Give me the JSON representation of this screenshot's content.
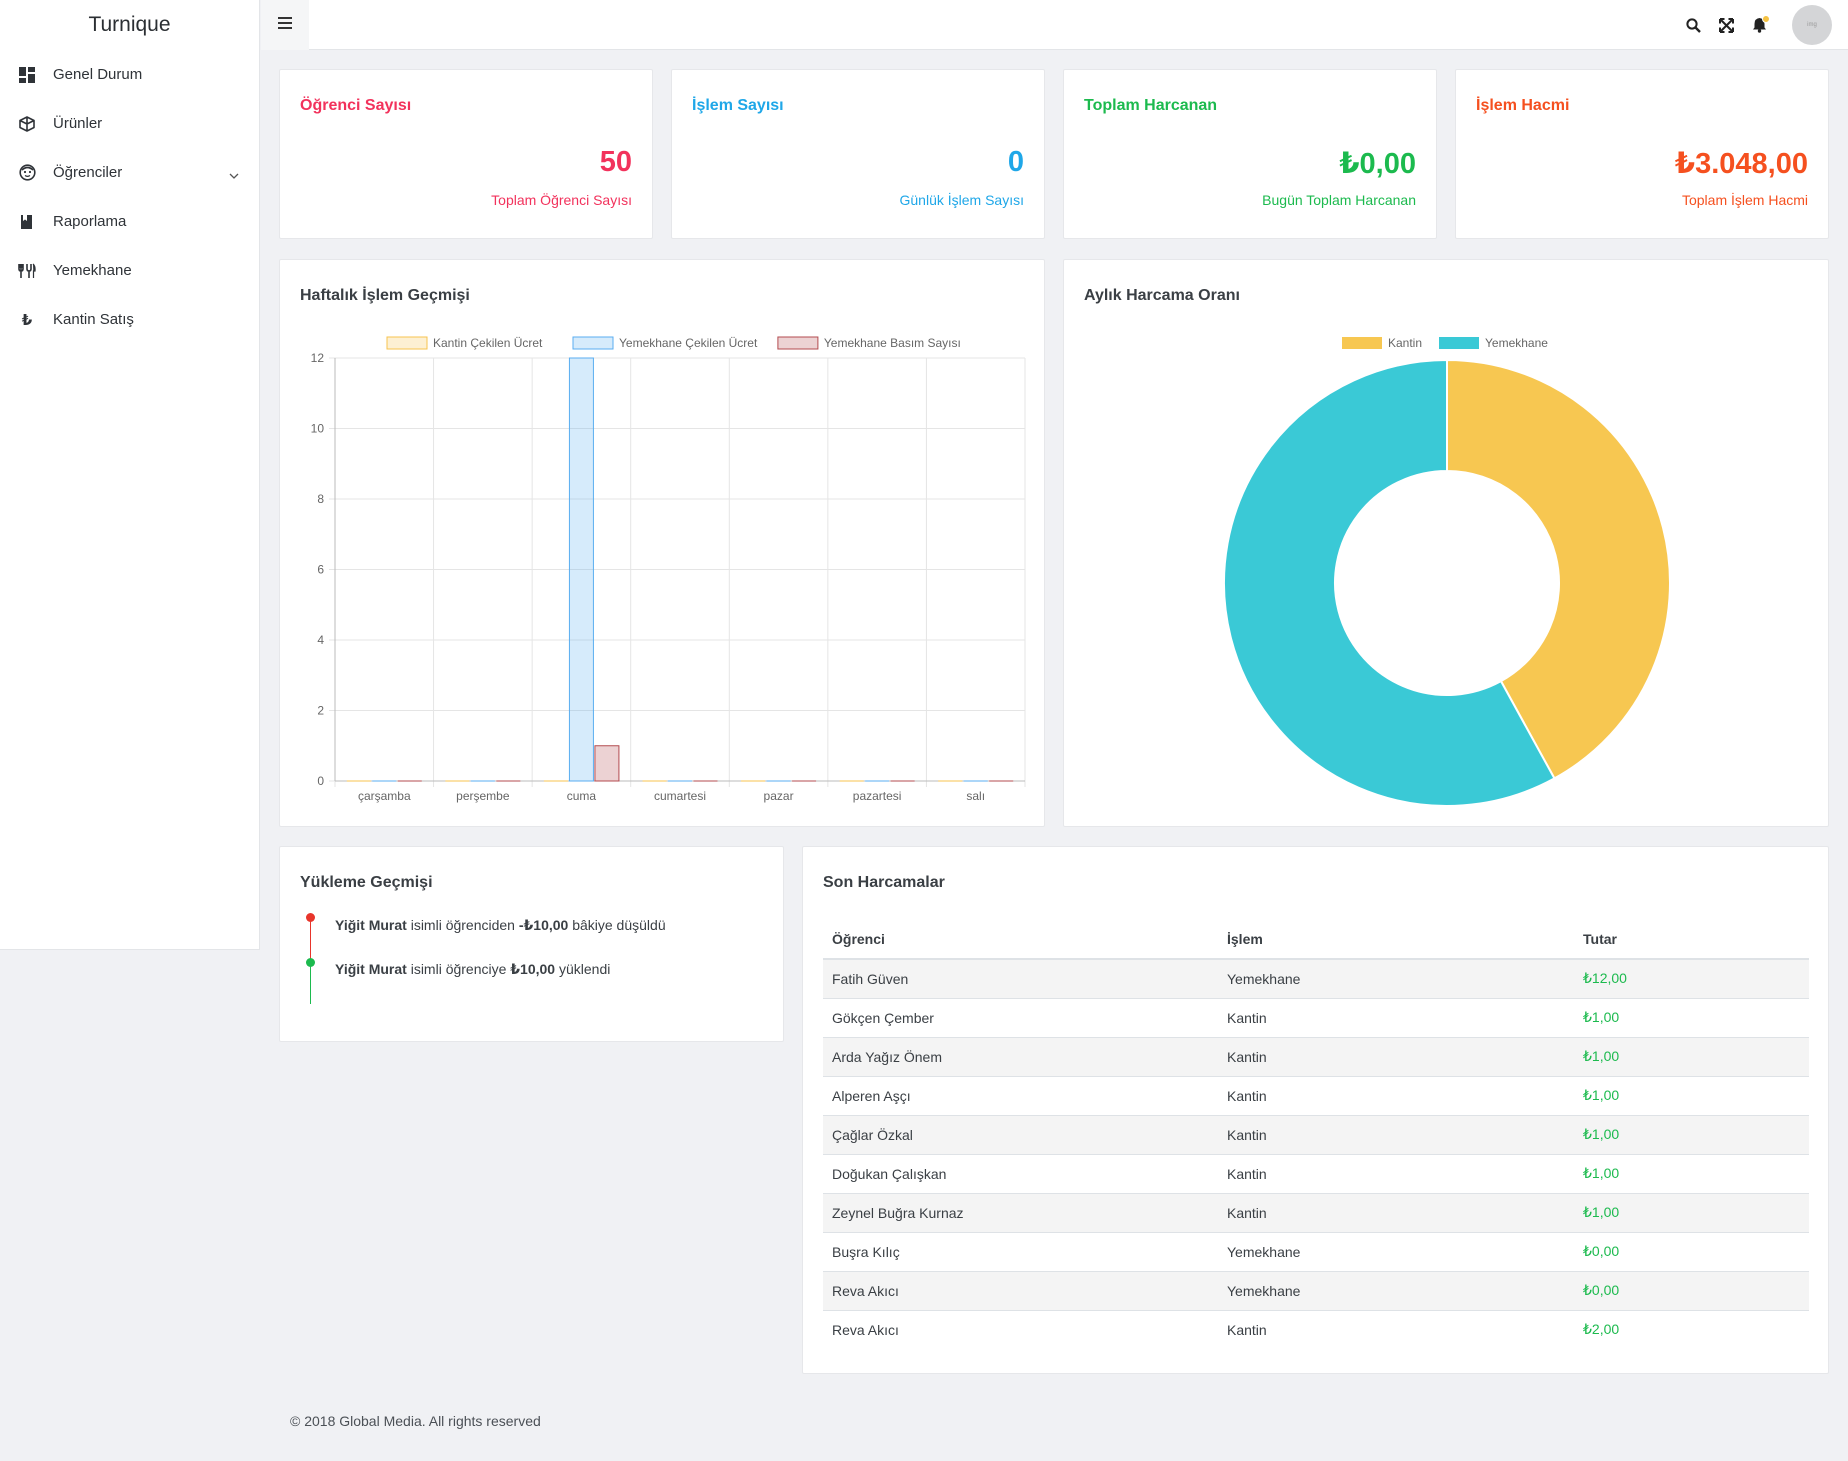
{
  "brand": "Turnique",
  "sidebar": {
    "items": [
      {
        "label": "Genel Durum"
      },
      {
        "label": "Ürünler"
      },
      {
        "label": "Öğrenciler"
      },
      {
        "label": "Raporlama"
      },
      {
        "label": "Yemekhane"
      },
      {
        "label": "Kantin Satış"
      }
    ]
  },
  "topbar": {
    "avatar_text": "img"
  },
  "stats": [
    {
      "title": "Öğrenci Sayısı",
      "value": "50",
      "sub": "Toplam Öğrenci Sayısı",
      "color": "#f2325c"
    },
    {
      "title": "İşlem Sayısı",
      "value": "0",
      "sub": "Günlük İşlem Sayısı",
      "color": "#1fa7e8"
    },
    {
      "title": "Toplam Harcanan",
      "value": "₺0,00",
      "sub": "Bugün Toplam Harcanan",
      "color": "#1cba4e"
    },
    {
      "title": "İşlem Hacmi",
      "value": "₺3.048,00",
      "sub": "Toplam İşlem Hacmi",
      "color": "#f5501f"
    }
  ],
  "weekly": {
    "title": "Haftalık İşlem Geçmişi"
  },
  "monthly": {
    "title": "Aylık Harcama Oranı"
  },
  "chart_data": [
    {
      "type": "bar",
      "categories": [
        "çarşamba",
        "perşembe",
        "cuma",
        "cumartesi",
        "pazar",
        "pazartesi",
        "salı"
      ],
      "series": [
        {
          "name": "Kantin Çekilen Ücret",
          "values": [
            0,
            0,
            0,
            0,
            0,
            0,
            0
          ],
          "color": "#f7c34f"
        },
        {
          "name": "Yemekhane Çekilen Ücret",
          "values": [
            0,
            0,
            12,
            0,
            0,
            0,
            0
          ],
          "color": "#5aaef0"
        },
        {
          "name": "Yemekhane Basım Sayısı",
          "values": [
            0,
            0,
            1,
            0,
            0,
            0,
            0
          ],
          "color": "#b34b4f"
        }
      ],
      "ylim": [
        0,
        12
      ],
      "yticks": [
        "0",
        "2",
        "4",
        "6",
        "8",
        "10",
        "12"
      ],
      "grid": true,
      "legend": "top"
    },
    {
      "type": "pie",
      "donut": true,
      "categories": [
        "Kantin",
        "Yemekhane"
      ],
      "values": [
        42,
        58
      ],
      "colors": [
        "#f7c751",
        "#3ac9d6"
      ],
      "legend": "top"
    }
  ],
  "timeline": {
    "title": "Yükleme Geçmişi",
    "items": [
      {
        "name": "Yiğit Murat",
        "text1": "isimli öğrenciden",
        "amount": "-₺10,00",
        "text2": "bâkiye düşüldü",
        "color": "#e8352b"
      },
      {
        "name": "Yiğit Murat",
        "text1": "isimli öğrenciye",
        "amount": "₺10,00",
        "text2": "yüklendi",
        "color": "#1cba4e"
      }
    ]
  },
  "recent": {
    "title": "Son Harcamalar",
    "columns": [
      "Öğrenci",
      "İşlem",
      "Tutar"
    ],
    "rows": [
      [
        "Fatih Güven",
        "Yemekhane",
        "₺12,00"
      ],
      [
        "Gökçen Çember",
        "Kantin",
        "₺1,00"
      ],
      [
        "Arda Yağız Önem",
        "Kantin",
        "₺1,00"
      ],
      [
        "Alperen Aşçı",
        "Kantin",
        "₺1,00"
      ],
      [
        "Çağlar Özkal",
        "Kantin",
        "₺1,00"
      ],
      [
        "Doğukan Çalışkan",
        "Kantin",
        "₺1,00"
      ],
      [
        "Zeynel Buğra Kurnaz",
        "Kantin",
        "₺1,00"
      ],
      [
        "Buşra Kılıç",
        "Yemekhane",
        "₺0,00"
      ],
      [
        "Reva Akıcı",
        "Yemekhane",
        "₺0,00"
      ],
      [
        "Reva Akıcı",
        "Kantin",
        "₺2,00"
      ]
    ]
  },
  "footer": "© 2018 Global Media. All rights reserved"
}
